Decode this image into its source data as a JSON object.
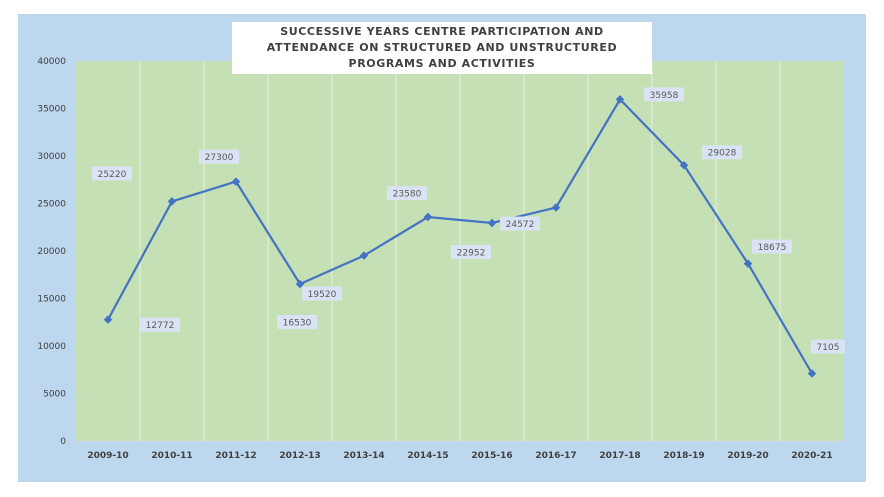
{
  "chart_data": {
    "type": "line",
    "title": "SUCCESSIVE YEARS CENTRE PARTICIPATION AND ATTENDANCE ON STRUCTURED AND UNSTRUCTURED PROGRAMS AND ACTIVITIES",
    "categories": [
      "2009-10",
      "2010-11",
      "2011-12",
      "2012-13",
      "2013-14",
      "2014-15",
      "2015-16",
      "2016-17",
      "2017-18",
      "2018-19",
      "2019-20",
      "2020-21"
    ],
    "series": [
      {
        "values": [
          12772,
          25220,
          27300,
          16530,
          19520,
          23580,
          22952,
          24572,
          35958,
          29028,
          18675,
          7105
        ]
      }
    ],
    "data_labels": [
      "12772",
      "25220",
      "27300",
      "16530",
      "19520",
      "23580",
      "22952",
      "24572",
      "35958",
      "29028",
      "18675",
      "7105"
    ],
    "ylim": [
      0,
      40000
    ],
    "yticks": [
      0,
      5000,
      10000,
      15000,
      20000,
      25000,
      30000,
      35000,
      40000
    ],
    "xlabel": "",
    "ylabel": "",
    "grid": "vertical",
    "legend": "none",
    "colors": {
      "frame_background": "#bdd7ee",
      "plot_background": "#c5e0b4",
      "line": "#4472c4",
      "label_background": "#dae3f3"
    }
  }
}
